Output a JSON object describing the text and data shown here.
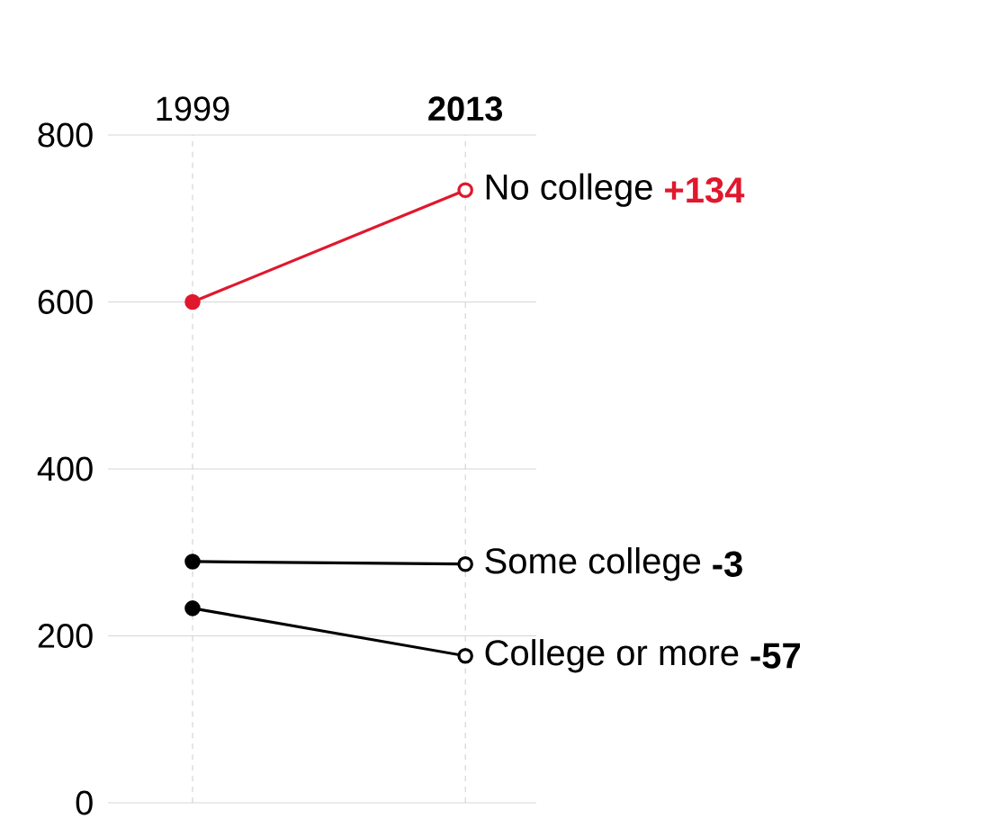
{
  "chart_data": {
    "type": "line",
    "categories": [
      "1999",
      "2013"
    ],
    "series": [
      {
        "name": "No college",
        "color": "#e0182d",
        "values": [
          600,
          734
        ]
      },
      {
        "name": "Some college",
        "color": "#000000",
        "values": [
          289,
          286
        ]
      },
      {
        "name": "College or more",
        "color": "#000000",
        "values": [
          233,
          176
        ]
      }
    ],
    "annotations": [
      "+134",
      "-3",
      "-57"
    ],
    "ylim": [
      0,
      800
    ],
    "yticks": [
      0,
      200,
      400,
      600,
      800
    ],
    "grid": true,
    "marker": "circle",
    "line_style": "solid"
  }
}
